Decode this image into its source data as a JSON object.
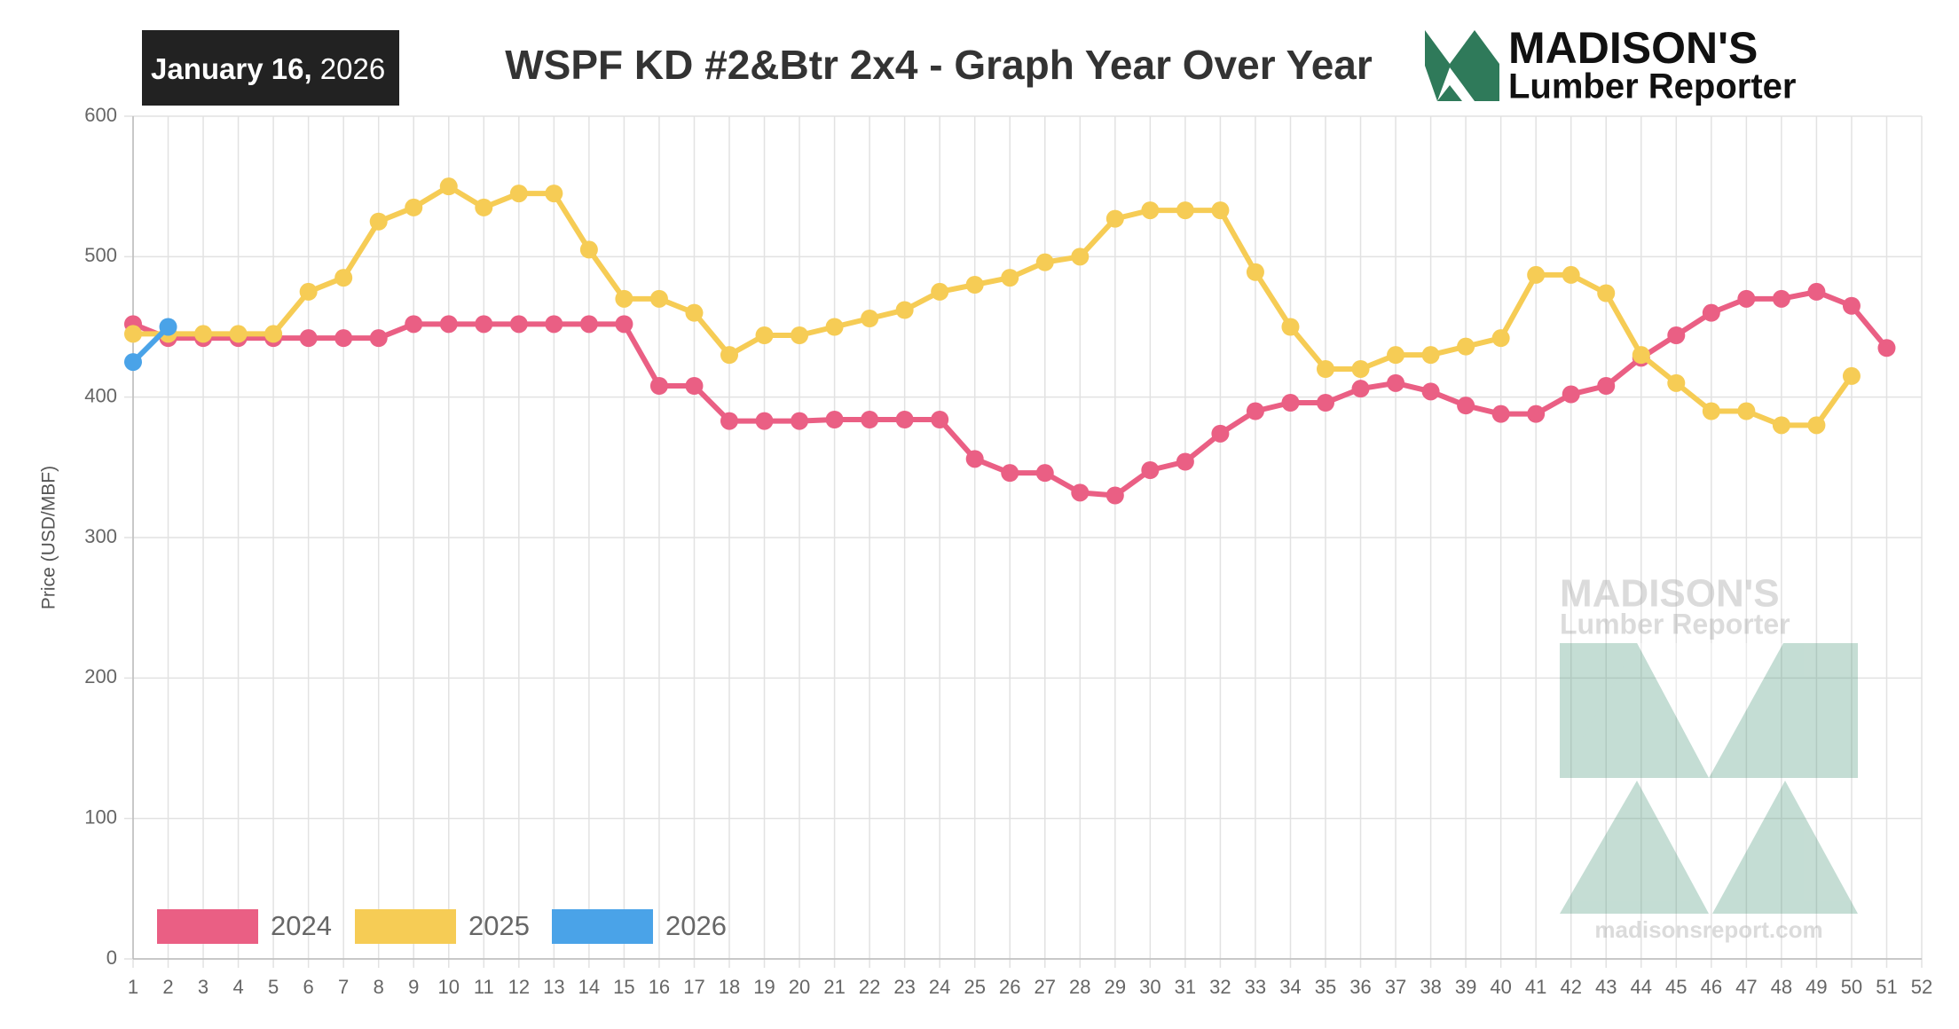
{
  "header": {
    "date_main": "January 16,",
    "date_year": "2026",
    "logo_name": "MADISON'S",
    "logo_sub": "Lumber Reporter",
    "watermark_name": "MADISON'S",
    "watermark_sub": "Lumber Reporter",
    "watermark_url": "madisonsreport.com"
  },
  "chart_data": {
    "type": "line",
    "title": "WSPF KD #2&Btr 2x4 - Graph Year Over Year",
    "y_label": "Price (USD/MBF)",
    "categories": [
      "1",
      "2",
      "3",
      "4",
      "5",
      "6",
      "7",
      "8",
      "9",
      "10",
      "11",
      "12",
      "13",
      "14",
      "15",
      "16",
      "17",
      "18",
      "19",
      "20",
      "21",
      "22",
      "23",
      "24",
      "25",
      "26",
      "27",
      "28",
      "29",
      "30",
      "31",
      "32",
      "33",
      "34",
      "35",
      "36",
      "37",
      "38",
      "39",
      "40",
      "41",
      "42",
      "43",
      "44",
      "45",
      "46",
      "47",
      "48",
      "49",
      "50",
      "51",
      "52"
    ],
    "series": [
      {
        "name": "2024",
        "color": "#ea5f84",
        "values": [
          452,
          442,
          442,
          442,
          442,
          442,
          442,
          442,
          452,
          452,
          452,
          452,
          452,
          452,
          452,
          408,
          408,
          383,
          383,
          383,
          384,
          384,
          384,
          384,
          356,
          346,
          346,
          332,
          330,
          348,
          354,
          374,
          390,
          396,
          396,
          406,
          410,
          404,
          394,
          388,
          388,
          402,
          408,
          428,
          444,
          460,
          470,
          470,
          475,
          465,
          435,
          null
        ]
      },
      {
        "name": "2025",
        "color": "#f6cc55",
        "values": [
          445,
          445,
          445,
          445,
          445,
          475,
          485,
          525,
          535,
          550,
          535,
          545,
          545,
          505,
          470,
          470,
          460,
          430,
          444,
          444,
          450,
          456,
          462,
          475,
          480,
          485,
          496,
          500,
          527,
          533,
          533,
          533,
          489,
          450,
          420,
          420,
          430,
          430,
          436,
          442,
          487,
          487,
          474,
          430,
          410,
          390,
          390,
          380,
          380,
          415,
          null,
          null
        ]
      },
      {
        "name": "2026",
        "color": "#4aa3e8",
        "values": [
          425,
          450,
          null,
          null,
          null,
          null,
          null,
          null,
          null,
          null,
          null,
          null,
          null,
          null,
          null,
          null,
          null,
          null,
          null,
          null,
          null,
          null,
          null,
          null,
          null,
          null,
          null,
          null,
          null,
          null,
          null,
          null,
          null,
          null,
          null,
          null,
          null,
          null,
          null,
          null,
          null,
          null,
          null,
          null,
          null,
          null,
          null,
          null,
          null,
          null,
          null,
          null
        ]
      }
    ],
    "ylim": [
      0,
      600
    ],
    "yticks": [
      0,
      100,
      200,
      300,
      400,
      500,
      600
    ],
    "grid": true,
    "legend": "bottom-left"
  }
}
